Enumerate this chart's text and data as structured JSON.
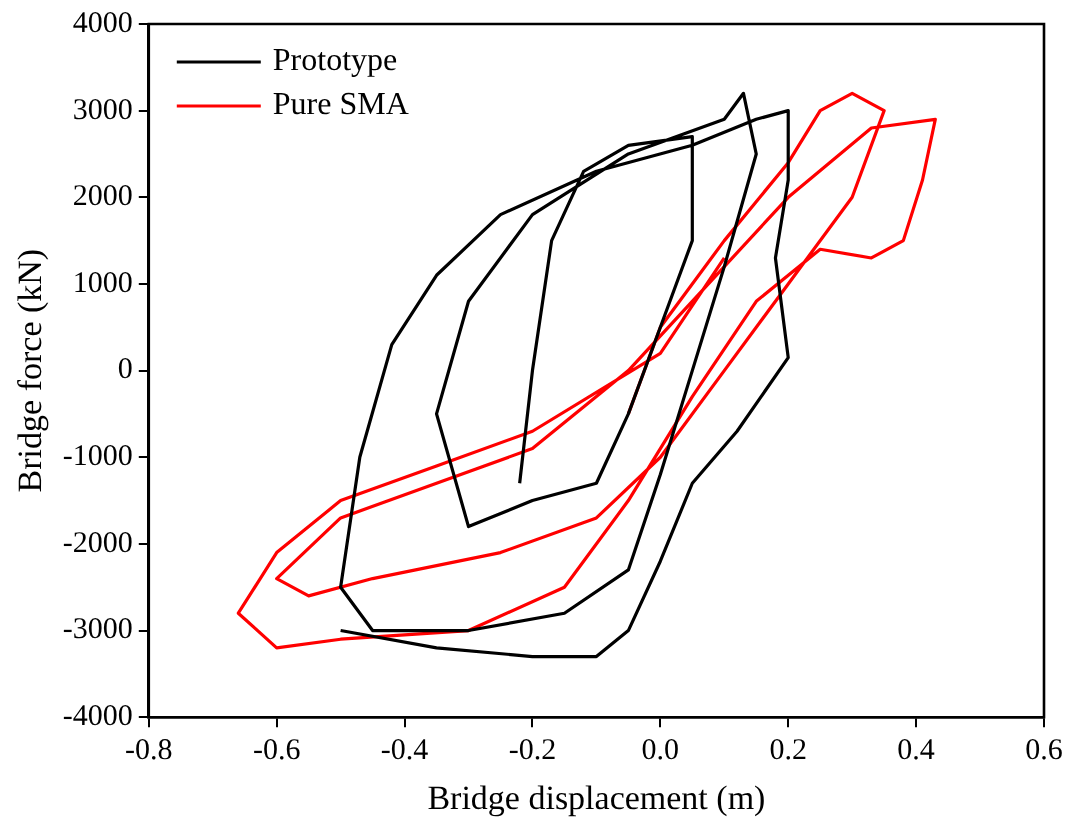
{
  "chart_data": {
    "type": "line",
    "xlabel": "Bridge displacement (m)",
    "ylabel": "Bridge force (kN)",
    "xlim": [
      -0.8,
      0.6
    ],
    "xticks": [
      -0.8,
      -0.6,
      -0.4,
      -0.2,
      {
        "value": 0,
        "label": "0.0"
      },
      0.2,
      0.4,
      0.6
    ],
    "ylim": [
      -4000,
      4000
    ],
    "yticks": [
      -4000,
      -3000,
      -2000,
      -1000,
      0,
      1000,
      2000,
      3000,
      4000
    ],
    "grid": false,
    "legend": "top left",
    "marker": "none",
    "line_style": "solid",
    "series": [
      {
        "name": "Prototype",
        "color": "#000000",
        "x": [
          -0.22,
          -0.2,
          -0.17,
          -0.12,
          -0.05,
          0.05,
          0.05,
          0,
          -0.05,
          -0.1,
          -0.2,
          -0.3,
          -0.35,
          -0.3,
          -0.2,
          -0.05,
          0.1,
          0.13,
          0.15,
          0.1,
          0.05,
          0,
          -0.05,
          -0.15,
          -0.3,
          -0.45,
          -0.5,
          -0.47,
          -0.42,
          -0.35,
          -0.25,
          -0.1,
          0.05,
          0.15,
          0.2,
          0.2,
          0.18,
          0.2,
          0.12,
          0.05,
          0,
          -0.05,
          -0.1,
          -0.2,
          -0.35,
          -0.5
        ],
        "values": [
          -1300,
          0,
          1500,
          2300,
          2600,
          2700,
          1500,
          500,
          -500,
          -1300,
          -1500,
          -1800,
          -500,
          800,
          1800,
          2500,
          2900,
          3200,
          2500,
          1200,
          0,
          -1200,
          -2300,
          -2800,
          -3000,
          -3000,
          -2500,
          -1000,
          300,
          1100,
          1800,
          2300,
          2600,
          2900,
          3000,
          2200,
          1300,
          150,
          -700,
          -1300,
          -2200,
          -3000,
          -3300,
          -3300,
          -3200,
          -3000
        ]
      },
      {
        "name": "Pure SMA",
        "color": "#ff0000",
        "x": [
          -0.05,
          0,
          0.1,
          0.2,
          0.25,
          0.3,
          0.35,
          0.3,
          0.2,
          0.1,
          0,
          -0.1,
          -0.25,
          -0.45,
          -0.55,
          -0.6,
          -0.5,
          -0.35,
          -0.2,
          -0.05,
          0.1,
          0.2,
          0.33,
          0.43,
          0.41,
          0.38,
          0.33,
          0.25,
          0.15,
          0.05,
          -0.05,
          -0.15,
          -0.3,
          -0.5,
          -0.6,
          -0.66,
          -0.6,
          -0.5,
          -0.35,
          -0.2,
          0,
          0.1
        ],
        "values": [
          -500,
          500,
          1500,
          2400,
          3000,
          3200,
          3000,
          2000,
          1000,
          0,
          -1000,
          -1700,
          -2100,
          -2400,
          -2600,
          -2400,
          -1700,
          -1300,
          -900,
          0,
          1200,
          2000,
          2800,
          2900,
          2200,
          1500,
          1300,
          1400,
          800,
          -300,
          -1500,
          -2500,
          -3000,
          -3100,
          -3200,
          -2800,
          -2100,
          -1500,
          -1100,
          -700,
          200,
          1300
        ]
      }
    ]
  }
}
